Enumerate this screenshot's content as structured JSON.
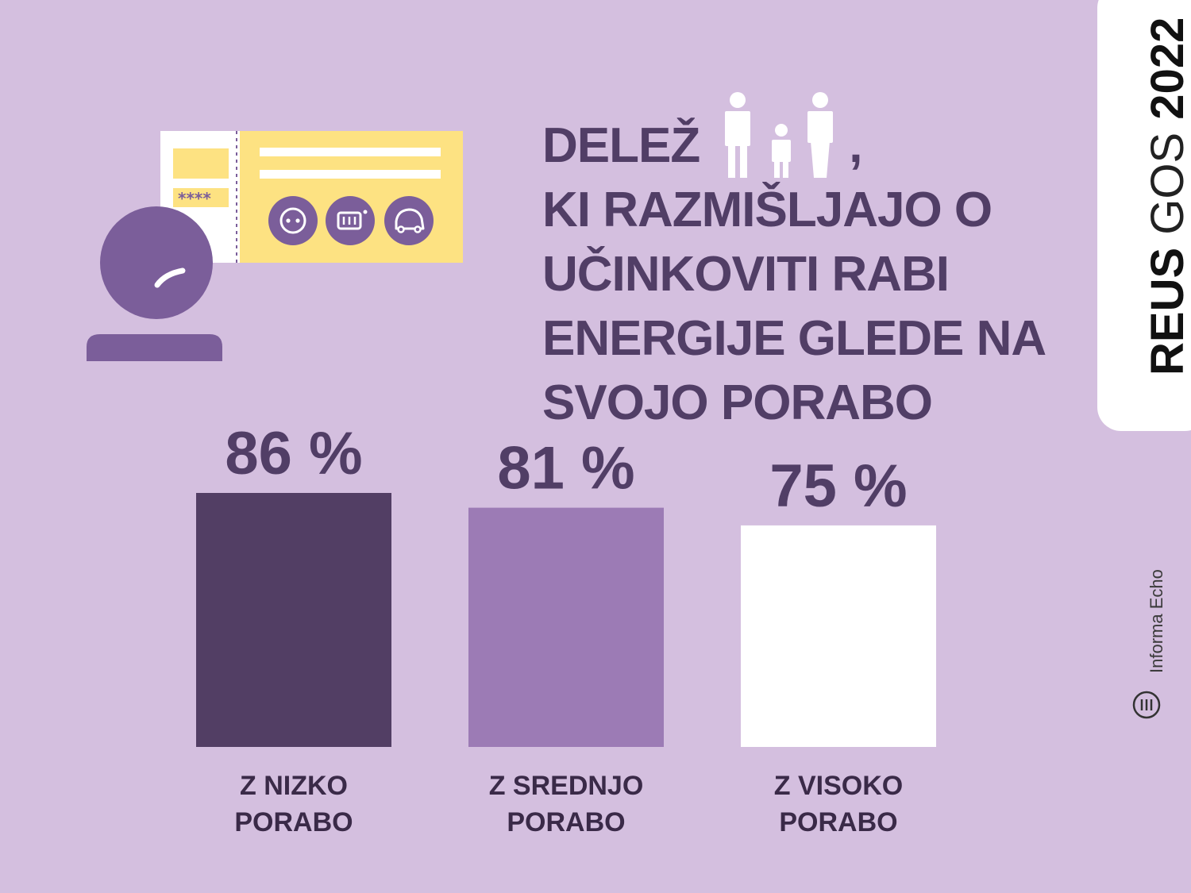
{
  "title_lines": [
    "DELEŽ",
    "KI RAZMIŠLJAJO O",
    "UČINKOVITI RABI",
    "ENERGIJE GLEDE NA",
    "SVOJO PORABO"
  ],
  "title_comma": ",",
  "title_icon": "family-icon",
  "side_label": {
    "bold": "REUS",
    "thin": " GOS ",
    "year": "2022"
  },
  "credit": "Informa Echo",
  "card_stars": "****",
  "colors": {
    "background": "#d4bfdf",
    "text": "#513e66",
    "bar_low": "#523e64",
    "bar_mid": "#9c7bb5",
    "bar_high": "#ffffff",
    "card": "#fde282",
    "person": "#7b5e9a"
  },
  "chart_data": {
    "type": "bar",
    "unit": "%",
    "categories": [
      [
        "Z NIZKO",
        "PORABO"
      ],
      [
        "Z SREDNJO",
        "PORABO"
      ],
      [
        "Z VISOKO",
        "PORABO"
      ]
    ],
    "values": [
      86,
      81,
      75
    ],
    "value_labels": [
      "86 %",
      "81 %",
      "75 %"
    ],
    "bar_colors": [
      "#523e64",
      "#9c7bb5",
      "#ffffff"
    ]
  }
}
